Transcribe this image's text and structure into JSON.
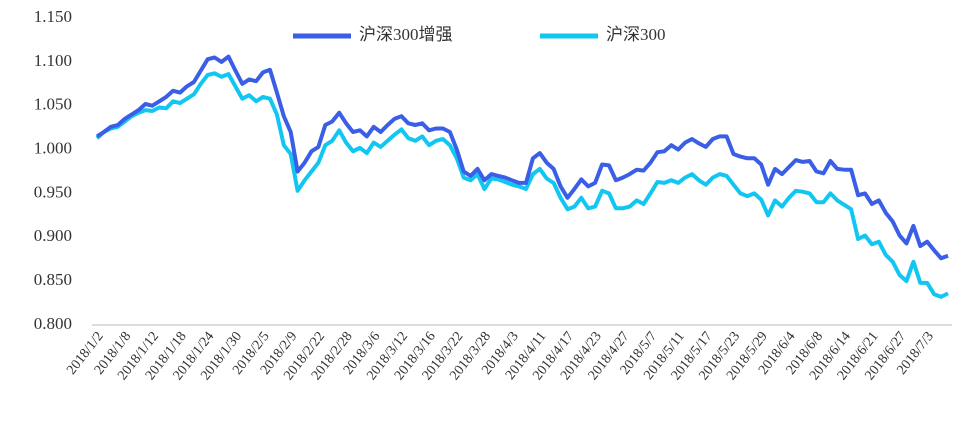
{
  "chart_data": {
    "type": "line",
    "categories": [
      "2018/1/2",
      null,
      null,
      null,
      "2018/1/8",
      null,
      null,
      null,
      "2018/1/12",
      null,
      null,
      null,
      "2018/1/18",
      null,
      null,
      null,
      "2018/1/24",
      null,
      null,
      null,
      "2018/1/30",
      null,
      null,
      null,
      "2018/2/5",
      null,
      null,
      null,
      "2018/2/9",
      null,
      null,
      null,
      "2018/2/22",
      null,
      null,
      null,
      "2018/2/28",
      null,
      null,
      null,
      "2018/3/6",
      null,
      null,
      null,
      "2018/3/12",
      null,
      null,
      null,
      "2018/3/16",
      null,
      null,
      null,
      "2018/3/22",
      null,
      null,
      null,
      "2018/3/28",
      null,
      null,
      null,
      "2018/4/3",
      null,
      null,
      null,
      "2018/4/11",
      null,
      null,
      null,
      "2018/4/17",
      null,
      null,
      null,
      "2018/4/23",
      null,
      null,
      null,
      "2018/4/27",
      null,
      null,
      null,
      "2018/5/7",
      null,
      null,
      null,
      "2018/5/11",
      null,
      null,
      null,
      "2018/5/17",
      null,
      null,
      null,
      "2018/5/23",
      null,
      null,
      null,
      "2018/5/29",
      null,
      null,
      null,
      "2018/6/4",
      null,
      null,
      null,
      "2018/6/8",
      null,
      null,
      null,
      "2018/6/14",
      null,
      null,
      null,
      "2018/6/21",
      null,
      null,
      null,
      "2018/6/27",
      null,
      null,
      null,
      "2018/7/3",
      null,
      null,
      null
    ],
    "series": [
      {
        "name": "沪深300增强",
        "color": "#3a5ee6",
        "values": [
          1.015,
          1.02,
          1.026,
          1.028,
          1.035,
          1.04,
          1.045,
          1.052,
          1.05,
          1.055,
          1.06,
          1.067,
          1.065,
          1.072,
          1.077,
          1.09,
          1.103,
          1.105,
          1.1,
          1.106,
          1.09,
          1.075,
          1.08,
          1.078,
          1.088,
          1.091,
          1.065,
          1.038,
          1.02,
          0.975,
          0.985,
          0.998,
          1.003,
          1.028,
          1.032,
          1.042,
          1.03,
          1.02,
          1.022,
          1.015,
          1.026,
          1.02,
          1.028,
          1.035,
          1.038,
          1.03,
          1.028,
          1.03,
          1.022,
          1.024,
          1.024,
          1.02,
          1.0,
          0.975,
          0.97,
          0.978,
          0.965,
          0.972,
          0.97,
          0.968,
          0.965,
          0.962,
          0.962,
          0.99,
          0.996,
          0.985,
          0.978,
          0.958,
          0.945,
          0.955,
          0.966,
          0.958,
          0.962,
          0.983,
          0.982,
          0.965,
          0.968,
          0.972,
          0.977,
          0.976,
          0.985,
          0.997,
          0.998,
          1.005,
          1.0,
          1.008,
          1.012,
          1.007,
          1.003,
          1.012,
          1.015,
          1.015,
          0.995,
          0.992,
          0.99,
          0.99,
          0.983,
          0.96,
          0.978,
          0.972,
          0.98,
          0.988,
          0.986,
          0.987,
          0.975,
          0.973,
          0.987,
          0.978,
          0.977,
          0.977,
          0.948,
          0.95,
          0.938,
          0.942,
          0.928,
          0.918,
          0.902,
          0.893,
          0.913,
          0.89,
          0.895,
          0.885,
          0.876,
          0.879
        ]
      },
      {
        "name": "沪深300",
        "color": "#12c6f2",
        "values": [
          1.013,
          1.02,
          1.024,
          1.026,
          1.032,
          1.038,
          1.042,
          1.045,
          1.044,
          1.048,
          1.047,
          1.055,
          1.053,
          1.058,
          1.063,
          1.075,
          1.085,
          1.087,
          1.083,
          1.086,
          1.072,
          1.058,
          1.062,
          1.055,
          1.06,
          1.058,
          1.04,
          1.005,
          0.995,
          0.953,
          0.965,
          0.975,
          0.985,
          1.005,
          1.01,
          1.022,
          1.008,
          0.998,
          1.002,
          0.996,
          1.008,
          1.003,
          1.01,
          1.017,
          1.023,
          1.013,
          1.01,
          1.015,
          1.005,
          1.01,
          1.012,
          1.005,
          0.99,
          0.968,
          0.965,
          0.972,
          0.955,
          0.967,
          0.966,
          0.963,
          0.96,
          0.958,
          0.955,
          0.972,
          0.978,
          0.967,
          0.962,
          0.945,
          0.932,
          0.935,
          0.945,
          0.933,
          0.935,
          0.953,
          0.95,
          0.933,
          0.933,
          0.935,
          0.942,
          0.938,
          0.95,
          0.963,
          0.962,
          0.965,
          0.962,
          0.968,
          0.972,
          0.965,
          0.96,
          0.968,
          0.972,
          0.97,
          0.96,
          0.95,
          0.947,
          0.95,
          0.943,
          0.925,
          0.942,
          0.935,
          0.945,
          0.953,
          0.952,
          0.95,
          0.94,
          0.94,
          0.95,
          0.942,
          0.937,
          0.932,
          0.898,
          0.902,
          0.892,
          0.895,
          0.88,
          0.872,
          0.857,
          0.85,
          0.872,
          0.848,
          0.848,
          0.835,
          0.832,
          0.836
        ]
      }
    ],
    "ylim": [
      0.8,
      1.15
    ],
    "yticks": [
      {
        "value": 0.8,
        "label": "0.800"
      },
      {
        "value": 0.85,
        "label": "0.850"
      },
      {
        "value": 0.9,
        "label": "0.900"
      },
      {
        "value": 0.95,
        "label": "0.950"
      },
      {
        "value": 1.0,
        "label": "1.000"
      },
      {
        "value": 1.05,
        "label": "1.050"
      },
      {
        "value": 1.1,
        "label": "1.100"
      },
      {
        "value": 1.15,
        "label": "1.150"
      }
    ],
    "grid": false,
    "legend": "top"
  }
}
